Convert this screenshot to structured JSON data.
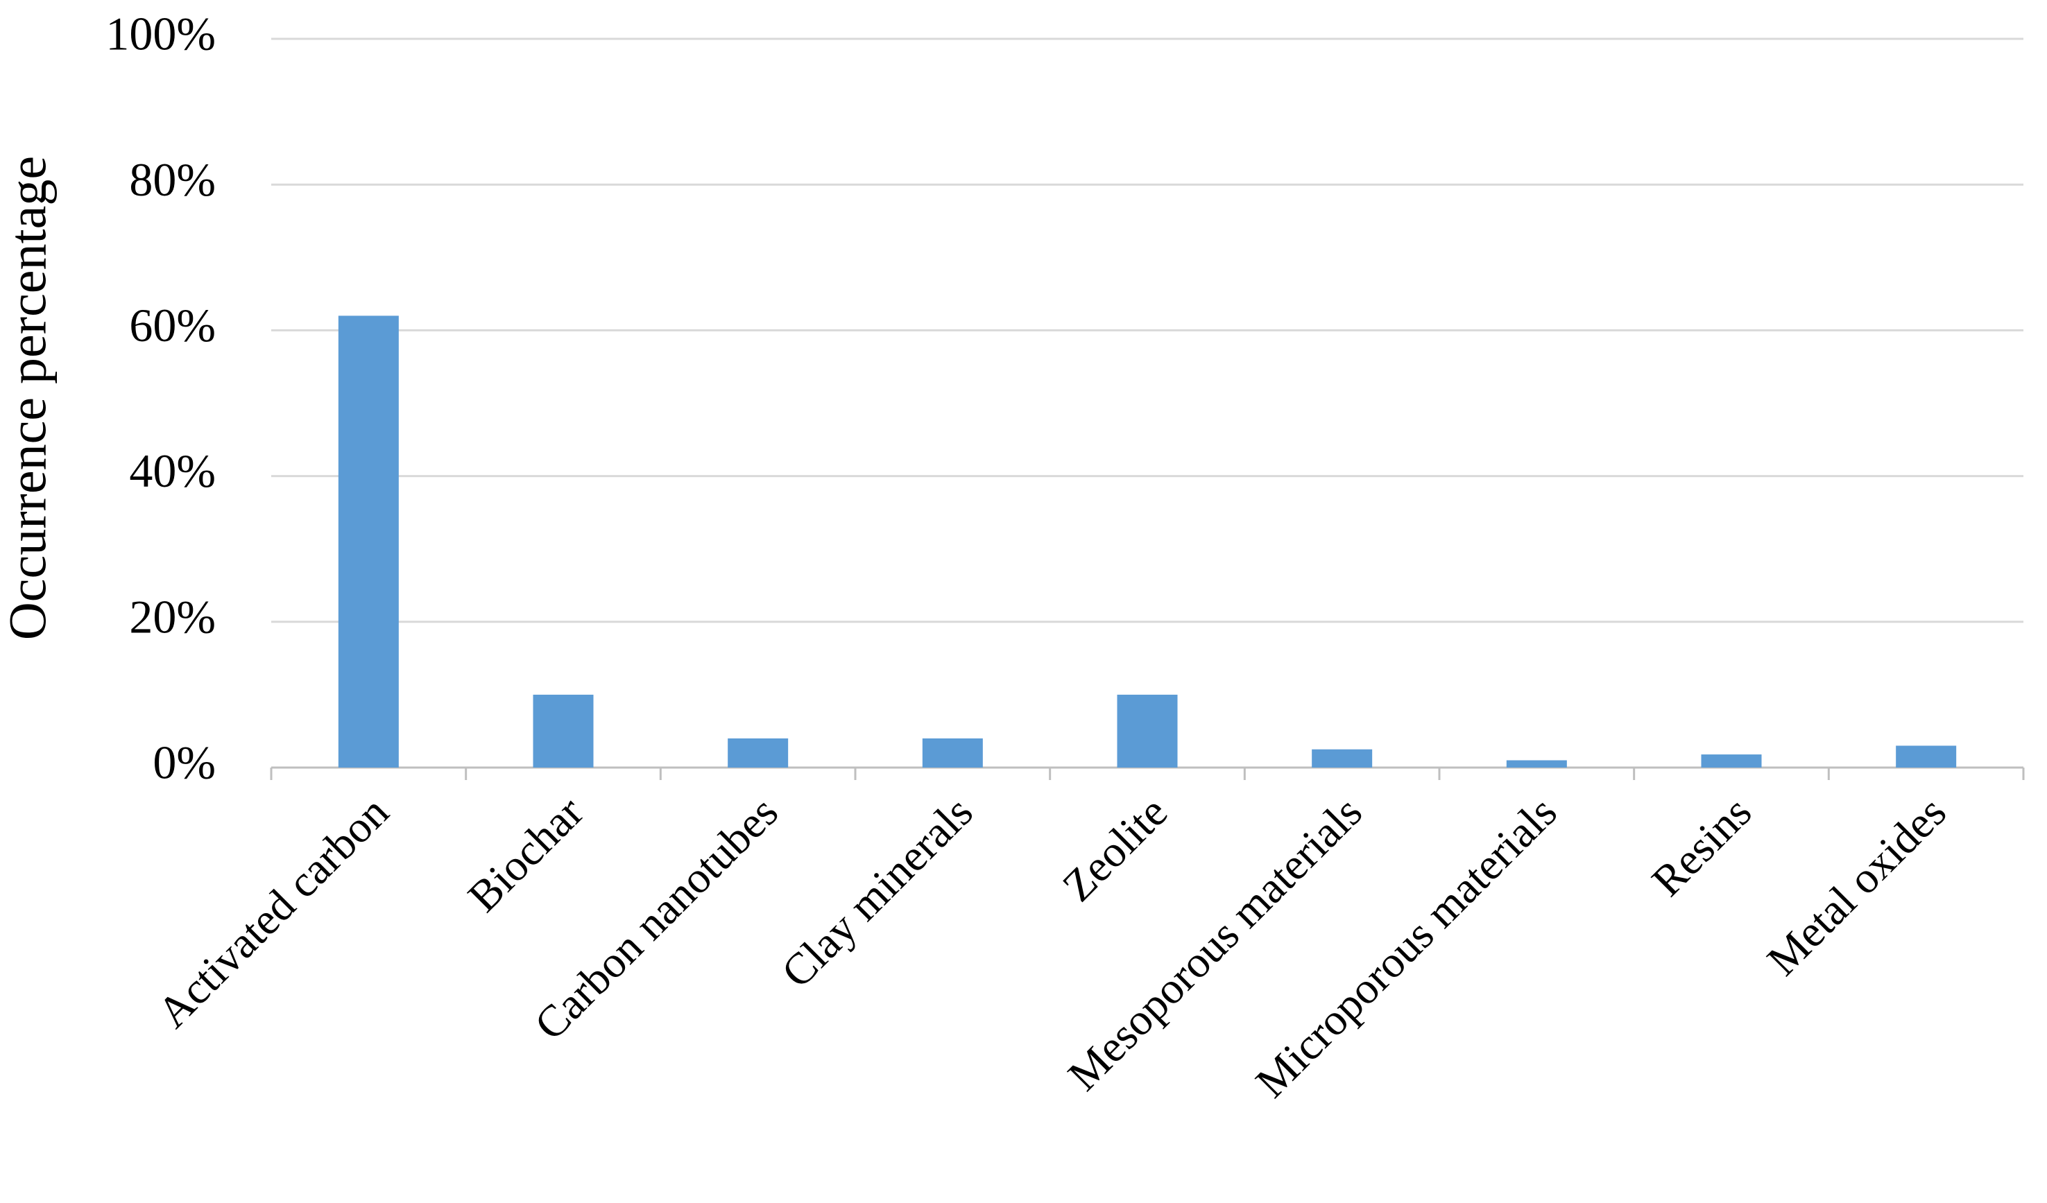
{
  "chart_data": {
    "type": "bar",
    "y_label": "Occurrence percentage",
    "categories": [
      "Activated carbon",
      "Biochar",
      "Carbon nanotubes",
      "Clay minerals",
      "Zeolite",
      "Mesoporous materials",
      "Microporous materials",
      "Resins",
      "Metal oxides"
    ],
    "values": [
      62,
      10,
      4,
      4,
      10,
      2.5,
      1,
      1.8,
      3
    ],
    "color": "#5b9bd5",
    "ylim": [
      0,
      100
    ],
    "yticks": [
      {
        "value": 0,
        "label": "0%"
      },
      {
        "value": 20,
        "label": "20%"
      },
      {
        "value": 40,
        "label": "40%"
      },
      {
        "value": 60,
        "label": "60%"
      },
      {
        "value": 80,
        "label": "80%"
      },
      {
        "value": 100,
        "label": "100%"
      }
    ],
    "grid": true
  }
}
